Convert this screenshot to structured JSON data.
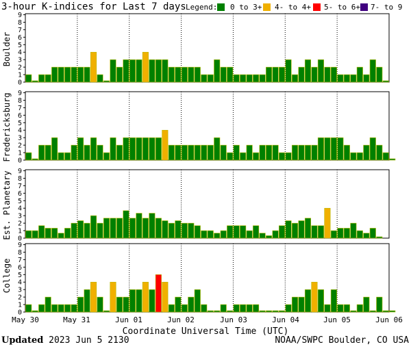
{
  "title": "3-hour K-indices for Last 7 days",
  "legend": {
    "label": "Legend:",
    "items": [
      {
        "label": "0 to 3+",
        "color": "#008000"
      },
      {
        "label": "4- to 4+",
        "color": "#f0b000"
      },
      {
        "label": "5- to 6+",
        "color": "#ff0000"
      },
      {
        "label": "7- to 9",
        "color": "#400080"
      }
    ]
  },
  "xlabel": "Coordinate Universal Time (UTC)",
  "date_labels": [
    "May 30",
    "May 31",
    "Jun 01",
    "Jun 02",
    "Jun 03",
    "Jun 04",
    "Jun 05",
    "Jun 06"
  ],
  "footer": {
    "updated_label": "Updated",
    "updated_value": "2023 Jun  5 2130",
    "source": "NOAA/SWPC Boulder, CO USA"
  },
  "chart_data": [
    {
      "type": "bar",
      "title": "Boulder",
      "ylim": [
        0,
        9
      ],
      "y_ticks": [
        0,
        1,
        2,
        3,
        4,
        5,
        6,
        7,
        8,
        9
      ],
      "values": [
        1,
        0,
        1,
        1,
        2,
        2,
        2,
        2,
        2,
        2,
        4,
        1,
        0,
        3,
        2,
        3,
        3,
        3,
        4,
        3,
        3,
        3,
        2,
        2,
        2,
        2,
        2,
        1,
        1,
        3,
        2,
        2,
        1,
        1,
        1,
        1,
        1,
        2,
        2,
        2,
        3,
        1,
        2,
        3,
        2,
        3,
        2,
        2,
        1,
        1,
        1,
        2,
        1,
        3,
        2,
        0
      ]
    },
    {
      "type": "bar",
      "title": "Fredericksburg",
      "ylim": [
        0,
        9
      ],
      "y_ticks": [
        0,
        1,
        2,
        3,
        4,
        5,
        6,
        7,
        8,
        9
      ],
      "values": [
        1,
        0,
        2,
        2,
        3,
        1,
        1,
        2,
        3,
        2,
        3,
        2,
        1,
        3,
        2,
        3,
        3,
        3,
        3,
        3,
        3,
        4,
        2,
        2,
        2,
        2,
        2,
        2,
        2,
        3,
        2,
        1,
        2,
        1,
        2,
        1,
        2,
        2,
        2,
        1,
        1,
        2,
        2,
        2,
        2,
        3,
        3,
        3,
        3,
        2,
        1,
        1,
        2,
        3,
        2,
        1,
        0
      ]
    },
    {
      "type": "bar",
      "title": "Est. Planetary",
      "ylim": [
        0,
        9
      ],
      "y_ticks": [
        0,
        1,
        2,
        3,
        4,
        5,
        6,
        7,
        8,
        9
      ],
      "values": [
        1,
        1,
        1.67,
        1.33,
        1.33,
        0.67,
        1.33,
        2,
        2.33,
        2,
        3,
        2,
        2.67,
        2.67,
        2.67,
        3.67,
        2.67,
        3.33,
        2.67,
        3.33,
        2.67,
        2.33,
        2,
        2.33,
        2,
        2,
        1.67,
        1,
        1,
        0.67,
        1,
        1.67,
        1.67,
        1.67,
        1,
        1.67,
        0.67,
        0.33,
        1,
        1.67,
        2.33,
        2,
        2.33,
        2.67,
        1.67,
        1.67,
        4,
        1,
        1.33,
        1.33,
        2,
        1,
        0.67,
        1.33,
        0
      ]
    },
    {
      "type": "bar",
      "title": "College",
      "ylim": [
        0,
        9
      ],
      "y_ticks": [
        0,
        1,
        2,
        3,
        4,
        5,
        6,
        7,
        8,
        9
      ],
      "values": [
        1,
        0,
        1,
        2,
        1,
        1,
        1,
        1,
        2,
        3,
        4,
        2,
        0,
        4,
        2,
        2,
        3,
        3,
        4,
        3,
        5,
        4,
        1,
        2,
        1,
        2,
        3,
        1,
        0,
        0,
        1,
        0,
        1,
        1,
        1,
        1,
        0,
        0,
        0,
        0,
        1,
        2,
        2,
        3,
        4,
        3,
        1,
        3,
        1,
        1,
        0,
        1,
        2,
        0,
        2,
        0,
        0
      ]
    }
  ]
}
